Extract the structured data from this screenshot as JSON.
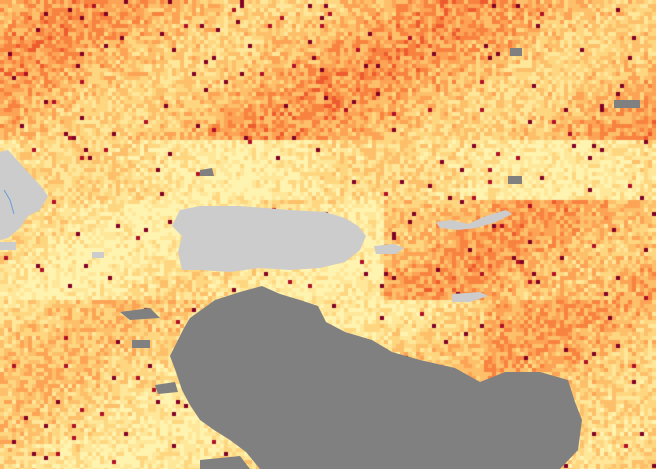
{
  "map": {
    "palette": [
      "#fff3b0",
      "#ffe79a",
      "#fed680",
      "#fdbf6a",
      "#fca355",
      "#f8823f",
      "#ee5b2e",
      "#d93524",
      "#b10f26",
      "#800026"
    ],
    "colors": {
      "land": "#cccccc",
      "no_data": "#808080",
      "river": "#6a9fd4"
    }
  }
}
